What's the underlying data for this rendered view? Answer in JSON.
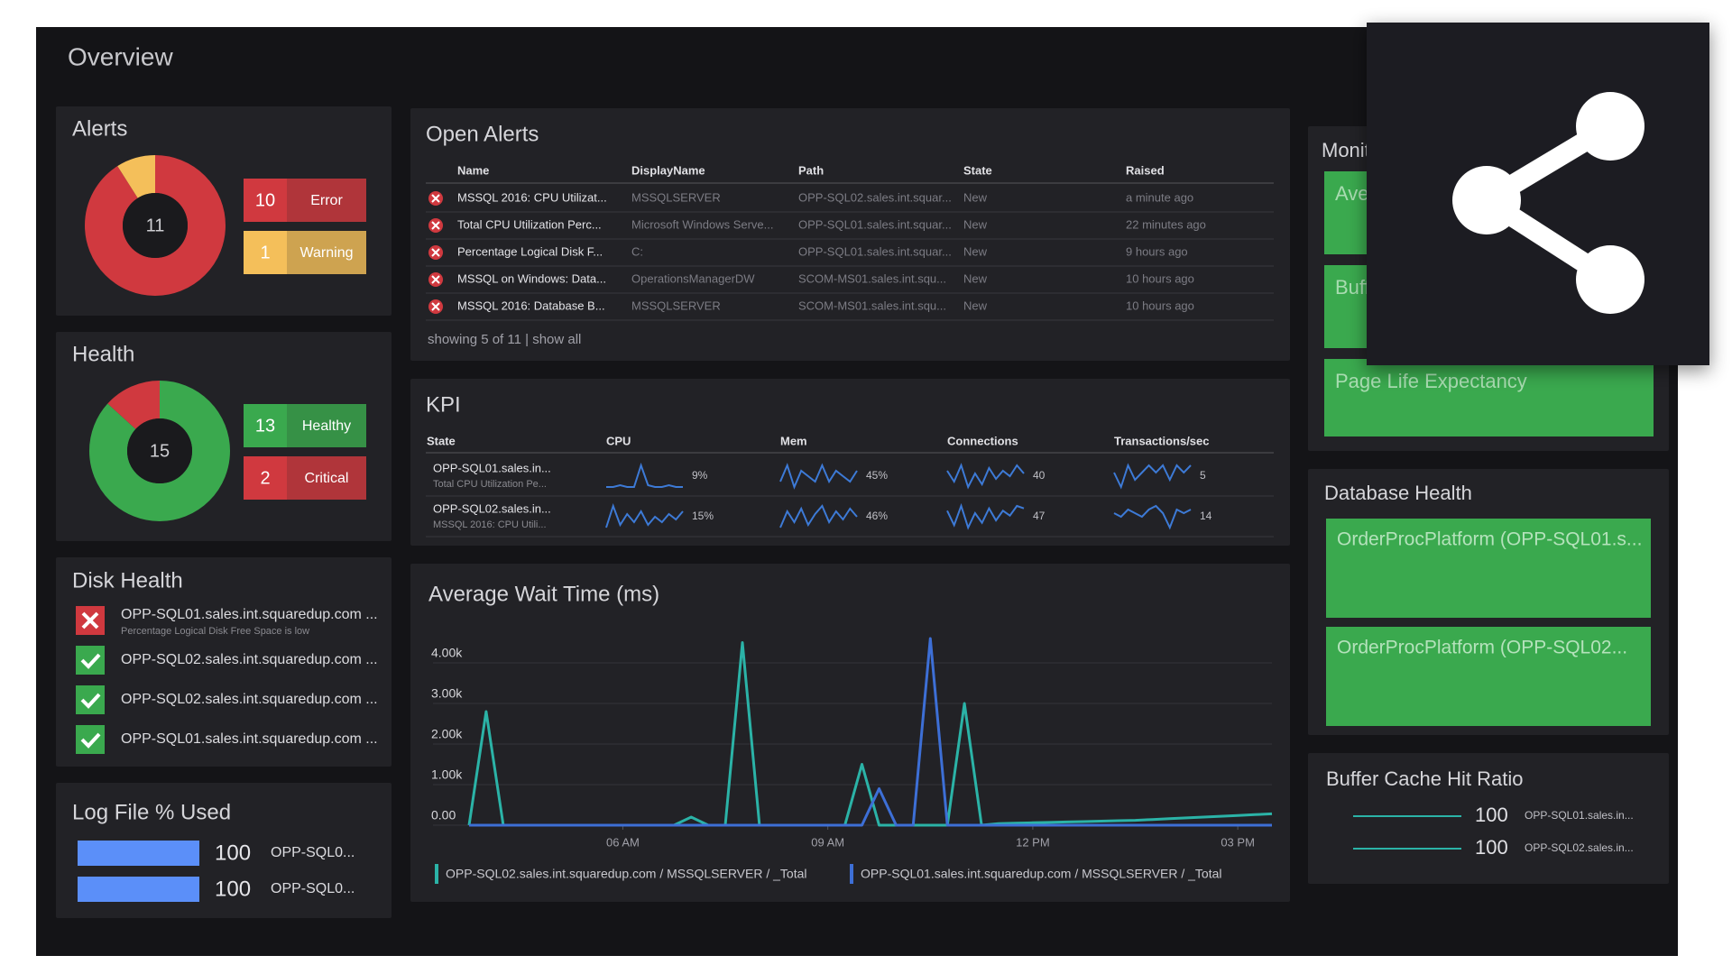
{
  "page": {
    "title": "Overview"
  },
  "alerts": {
    "title": "Alerts",
    "total": 11,
    "items": [
      {
        "count": 10,
        "label": "Error",
        "color": "#d0393f"
      },
      {
        "count": 1,
        "label": "Warning",
        "color": "#f4bf5a"
      }
    ]
  },
  "health": {
    "title": "Health",
    "total": 15,
    "items": [
      {
        "count": 13,
        "label": "Healthy",
        "color": "#3aa94e"
      },
      {
        "count": 2,
        "label": "Critical",
        "color": "#d0393f"
      }
    ]
  },
  "disk_health": {
    "title": "Disk Health",
    "items": [
      {
        "name": "OPP-SQL01.sales.int.squaredup.com ...",
        "detail": "Percentage Logical Disk Free Space is low",
        "status": "critical"
      },
      {
        "name": "OPP-SQL02.sales.int.squaredup.com ...",
        "status": "healthy"
      },
      {
        "name": "OPP-SQL02.sales.int.squaredup.com ...",
        "status": "healthy"
      },
      {
        "name": "OPP-SQL01.sales.int.squaredup.com ...",
        "status": "healthy"
      }
    ]
  },
  "log_file": {
    "title": "Log File % Used",
    "xlim": [
      0,
      100
    ],
    "color": "#5b8ff9",
    "items": [
      {
        "value": 100,
        "label": "OPP-SQL0..."
      },
      {
        "value": 100,
        "label": "OPP-SQL0..."
      }
    ]
  },
  "open_alerts": {
    "title": "Open Alerts",
    "columns": [
      "Name",
      "DisplayName",
      "Path",
      "State",
      "Raised"
    ],
    "rows": [
      [
        "MSSQL 2016: CPU Utilizat...",
        "MSSQLSERVER",
        "OPP-SQL02.sales.int.squar...",
        "New",
        "a minute ago"
      ],
      [
        "Total CPU Utilization Perc...",
        "Microsoft Windows Serve...",
        "OPP-SQL01.sales.int.squar...",
        "New",
        "22 minutes ago"
      ],
      [
        "Percentage Logical Disk F...",
        "C:",
        "OPP-SQL01.sales.int.squar...",
        "New",
        "9 hours ago"
      ],
      [
        "MSSQL on Windows: Data...",
        "OperationsManagerDW",
        "SCOM-MS01.sales.int.squ...",
        "New",
        "10 hours ago"
      ],
      [
        "MSSQL 2016: Database B...",
        "MSSQLSERVER",
        "SCOM-MS01.sales.int.squ...",
        "New",
        "10 hours ago"
      ]
    ],
    "footer": "showing 5 of 11 | show all"
  },
  "kpi": {
    "title": "KPI",
    "color": "#3d7ad6",
    "columns": [
      "State",
      "CPU",
      "Mem",
      "Connections",
      "Transactions/sec"
    ],
    "rows": [
      {
        "name": "OPP-SQL01.sales.in...",
        "detail": "Total CPU Utilization Pe...",
        "metrics": [
          {
            "trend": [
              2,
              2,
              3,
              2,
              2,
              14,
              3,
              2,
              2,
              3,
              2,
              2
            ],
            "current": "9%"
          },
          {
            "trend": [
              44,
              47,
              43,
              46,
              45,
              44,
              47,
              44,
              46,
              45,
              44,
              46
            ],
            "current": "45%"
          },
          {
            "trend": [
              42,
              38,
              44,
              36,
              41,
              37,
              43,
              39,
              42,
              40,
              44,
              41
            ],
            "current": "40"
          },
          {
            "trend": [
              5,
              3,
              6,
              4,
              5,
              6,
              5,
              6,
              4,
              6,
              5,
              6
            ],
            "current": "5"
          }
        ]
      },
      {
        "name": "OPP-SQL02.sales.in...",
        "detail": "MSSQL 2016: CPU Utili...",
        "metrics": [
          {
            "trend": [
              4,
              12,
              5,
              9,
              6,
              10,
              5,
              8,
              6,
              9,
              7,
              10
            ],
            "current": "15%"
          },
          {
            "trend": [
              42,
              48,
              44,
              49,
              43,
              47,
              50,
              44,
              48,
              45,
              49,
              46
            ],
            "current": "46%"
          },
          {
            "trend": [
              46,
              40,
              48,
              39,
              45,
              41,
              47,
              42,
              46,
              44,
              48,
              47
            ],
            "current": "47"
          },
          {
            "trend": [
              13,
              12,
              14,
              13,
              12,
              14,
              15,
              13,
              9,
              14,
              13,
              14
            ],
            "current": "14"
          }
        ]
      }
    ]
  },
  "wait_chart": {
    "type": "line",
    "title": "Average Wait Time (ms)",
    "grid": true,
    "xlim": [
      0,
      47
    ],
    "ylim": [
      0,
      5000
    ],
    "xticks": [
      {
        "value": 9,
        "label": "06 AM"
      },
      {
        "value": 21,
        "label": "09 AM"
      },
      {
        "value": 33,
        "label": "12 PM"
      },
      {
        "value": 45,
        "label": "03 PM"
      }
    ],
    "yticks": [
      {
        "value": 0,
        "label": "0.00"
      },
      {
        "value": 1000,
        "label": "1.00k"
      },
      {
        "value": 2000,
        "label": "2.00k"
      },
      {
        "value": 3000,
        "label": "3.00k"
      },
      {
        "value": 4000,
        "label": "4.00k"
      }
    ],
    "series": [
      {
        "name": "OPP-SQL02.sales.int.squaredup.com / MSSQLSERVER / _Total",
        "color": "#2bb3a7",
        "values": [
          0,
          2800,
          0,
          0,
          0,
          0,
          0,
          0,
          0,
          0,
          0,
          0,
          0,
          200,
          0,
          0,
          4500,
          0,
          0,
          0,
          0,
          0,
          0,
          1500,
          0,
          0,
          0,
          0,
          0,
          3000,
          0,
          40,
          50,
          60,
          70,
          80,
          90,
          100,
          110,
          120,
          140,
          160,
          180,
          200,
          220,
          240,
          260,
          280
        ]
      },
      {
        "name": "OPP-SQL01.sales.int.squaredup.com / MSSQLSERVER / _Total",
        "color": "#3d6fd6",
        "values": [
          0,
          0,
          0,
          0,
          0,
          0,
          0,
          0,
          0,
          0,
          0,
          0,
          0,
          0,
          0,
          0,
          0,
          0,
          0,
          0,
          0,
          0,
          0,
          0,
          900,
          0,
          0,
          4600,
          0,
          0,
          0,
          0,
          0,
          0,
          0,
          0,
          0,
          0,
          0,
          0,
          0,
          0,
          0,
          0,
          0,
          0,
          0,
          0
        ]
      }
    ]
  },
  "monitors": {
    "title": "Monitors",
    "color": "#3aa94e",
    "tiles": [
      "Average Wait Time",
      "Buffer Cache Hit Ratio",
      "Page Life Expectancy"
    ]
  },
  "database_health": {
    "title": "Database Health",
    "color": "#3aa94e",
    "tiles": [
      "OrderProcPlatform (OPP-SQL01.s...",
      "OrderProcPlatform (OPP-SQL02..."
    ]
  },
  "buffer_cache": {
    "title": "Buffer Cache Hit Ratio",
    "color": "#2bb3a7",
    "rows": [
      {
        "trend": [
          100,
          100,
          100,
          100,
          100,
          100
        ],
        "current": "100",
        "label": "OPP-SQL01.sales.in..."
      },
      {
        "trend": [
          100,
          100,
          100,
          100,
          100,
          100
        ],
        "current": "100",
        "label": "OPP-SQL02.sales.in..."
      }
    ]
  }
}
